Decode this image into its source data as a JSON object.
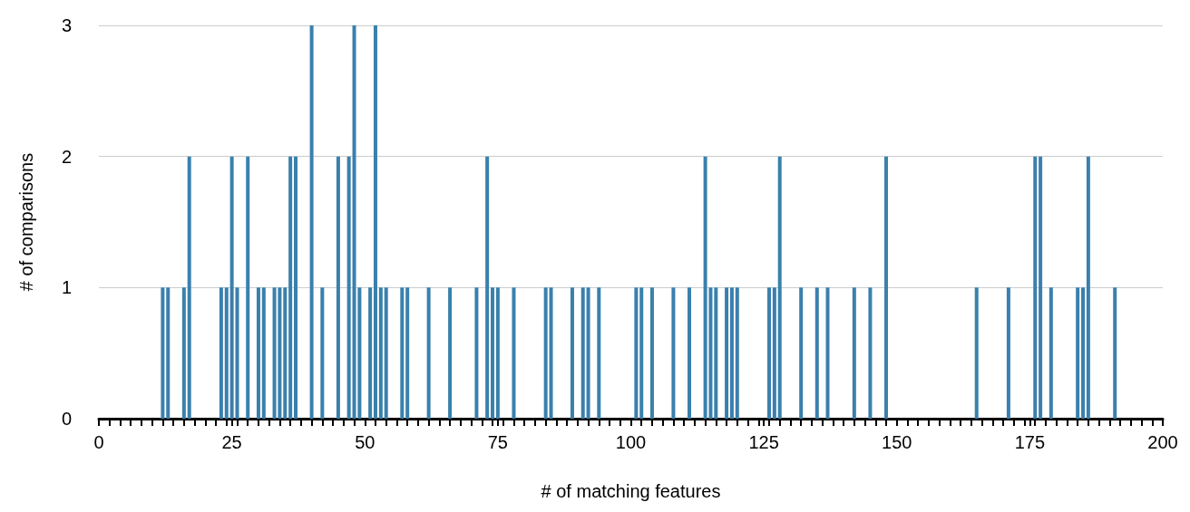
{
  "chart_data": {
    "type": "bar",
    "xlabel": "# of matching features",
    "ylabel": "# of comparisons",
    "x": [
      12,
      13,
      16,
      17,
      23,
      24,
      25,
      26,
      28,
      30,
      31,
      33,
      34,
      35,
      36,
      37,
      40,
      42,
      45,
      47,
      48,
      49,
      51,
      52,
      53,
      54,
      57,
      58,
      62,
      66,
      71,
      73,
      74,
      75,
      78,
      84,
      85,
      89,
      91,
      92,
      94,
      101,
      102,
      104,
      108,
      111,
      114,
      115,
      116,
      118,
      119,
      120,
      126,
      127,
      128,
      132,
      135,
      137,
      142,
      145,
      148,
      165,
      171,
      176,
      177,
      179,
      184,
      185,
      186,
      191
    ],
    "values": [
      1,
      1,
      1,
      2,
      1,
      1,
      2,
      1,
      2,
      1,
      1,
      1,
      1,
      1,
      2,
      2,
      3,
      1,
      2,
      2,
      3,
      1,
      1,
      3,
      1,
      1,
      1,
      1,
      1,
      1,
      1,
      2,
      1,
      1,
      1,
      1,
      1,
      1,
      1,
      1,
      1,
      1,
      1,
      1,
      1,
      1,
      2,
      1,
      1,
      1,
      1,
      1,
      1,
      1,
      2,
      1,
      1,
      1,
      1,
      1,
      2,
      1,
      1,
      2,
      2,
      1,
      1,
      1,
      2,
      1
    ],
    "color": "#3a80ad",
    "xlim": [
      0,
      200
    ],
    "xticks": [
      0,
      25,
      50,
      75,
      100,
      125,
      150,
      175,
      200
    ],
    "ylim": [
      0,
      3
    ],
    "yticks": [
      0,
      1,
      2,
      3
    ],
    "grid": "y"
  }
}
